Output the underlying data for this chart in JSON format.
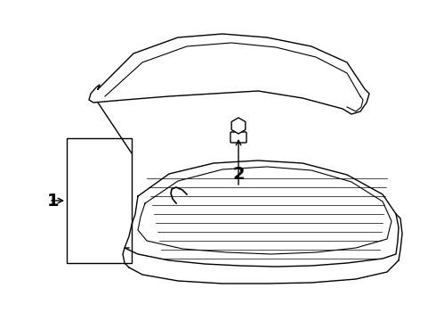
{
  "title": "",
  "background_color": "#ffffff",
  "line_color": "#000000",
  "label_1": "1",
  "label_2": "2",
  "figsize": [
    4.9,
    3.6
  ],
  "dpi": 100
}
